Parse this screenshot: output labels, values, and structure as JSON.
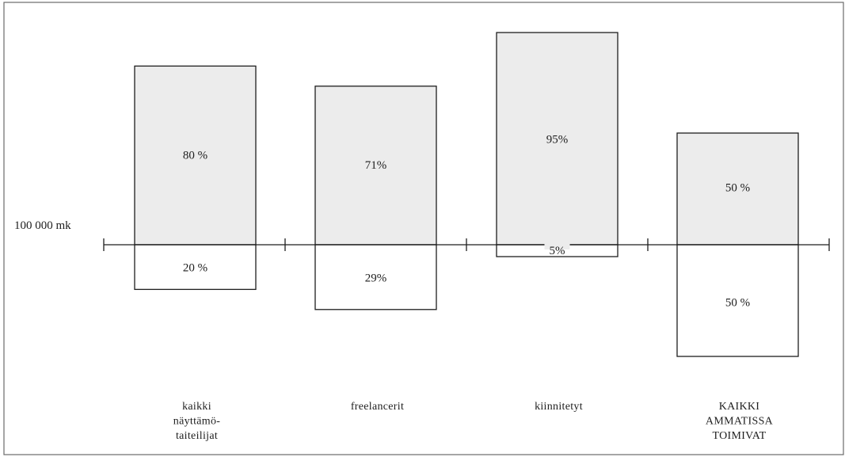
{
  "chart_data": {
    "type": "bar",
    "reference_label": "100 000 mk",
    "categories": [
      {
        "lines": [
          "kaikki",
          "näyttämö-",
          "taiteilijat"
        ],
        "above_label": "80 %",
        "below_label": "20 %",
        "above": 80,
        "below": 20
      },
      {
        "lines": [
          "freelancerit"
        ],
        "above_label": "71%",
        "below_label": "29%",
        "above": 71,
        "below": 29
      },
      {
        "lines": [
          "kiinnitetyt"
        ],
        "above_label": "95%",
        "below_label": "5%",
        "above": 95,
        "below": 5
      },
      {
        "lines": [
          "KAIKKI",
          "AMMATISSA",
          "TOIMIVAT"
        ],
        "above_label": "50 %",
        "below_label": "50 %",
        "above": 50,
        "below": 50
      }
    ],
    "unit": "%",
    "grid": false,
    "legend": false
  },
  "colors": {
    "above_fill": "#ececec",
    "below_fill": "#ffffff",
    "stroke": "#1e1e1e",
    "frame": "#6a6a6a"
  }
}
